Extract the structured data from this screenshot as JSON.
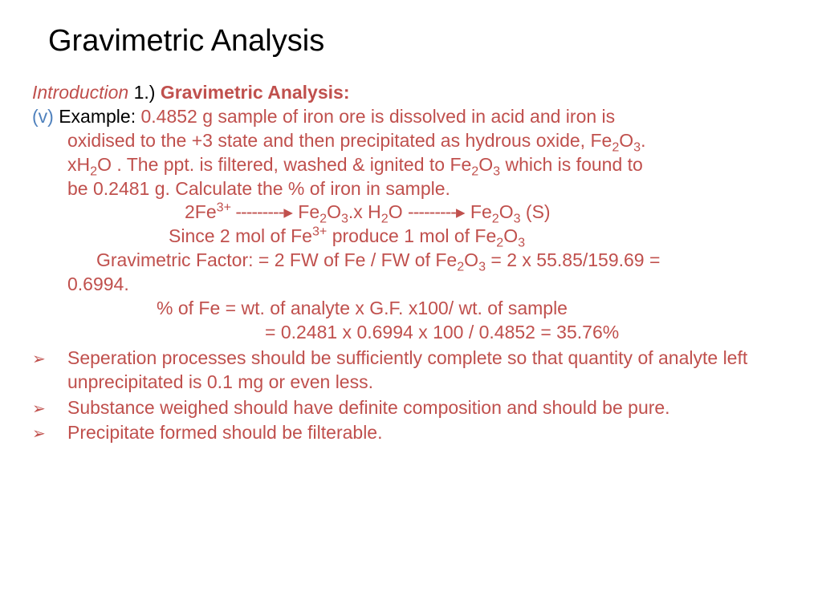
{
  "title": "Gravimetric Analysis",
  "intro": {
    "label": "Introduction",
    "num": " 1.)  ",
    "heading": "Gravimetric Analysis:"
  },
  "example": {
    "v": "(v) ",
    "label": "Example: ",
    "line1": "0.4852 g sample of iron ore is dissolved in acid and iron is",
    "line2a": "oxidised to the +3 state and then precipitated as hydrous oxide, Fe",
    "line2b": "O",
    "line2c": ".",
    "line3a": "xH",
    "line3b": "O . The ppt. is filtered, washed & ignited to Fe",
    "line3c": "O",
    "line3d": "  which is found to",
    "line4": "be 0.2481 g. Calculate the % of iron in sample."
  },
  "reaction": {
    "part1a": "2Fe",
    "arrow1": "   ---------",
    "tri": "▸",
    "part2a": " Fe",
    "part2b": "O",
    "part2c": ".x H",
    "part2d": "O ",
    "arrow2": "---------",
    "part3a": "  Fe",
    "part3b": "O",
    "part3c": "  (S)"
  },
  "since": {
    "a": "Since 2 mol of Fe",
    "b": "  produce 1 mol of Fe",
    "c": "O"
  },
  "gf": {
    "a": "Gravimetric Factor: = 2  FW of Fe / FW of Fe",
    "b": "O",
    "c": " = 2 x 55.85/159.69 =",
    "d": "0.6994."
  },
  "pct": {
    "line1": "% of Fe = wt. of analyte x G.F. x100/ wt. of sample",
    "line2": "= 0.2481 x 0.6994 x 100 / 0.4852 = 35.76%"
  },
  "bullets": {
    "b1": "Seperation processes should be sufficiently complete so that quantity of analyte left unprecipitated is 0.1 mg or even less.",
    "b2": "Substance weighed should have definite composition and should be pure.",
    "b3": "Precipitate formed should be filterable."
  },
  "arrow_glyph": "➢"
}
